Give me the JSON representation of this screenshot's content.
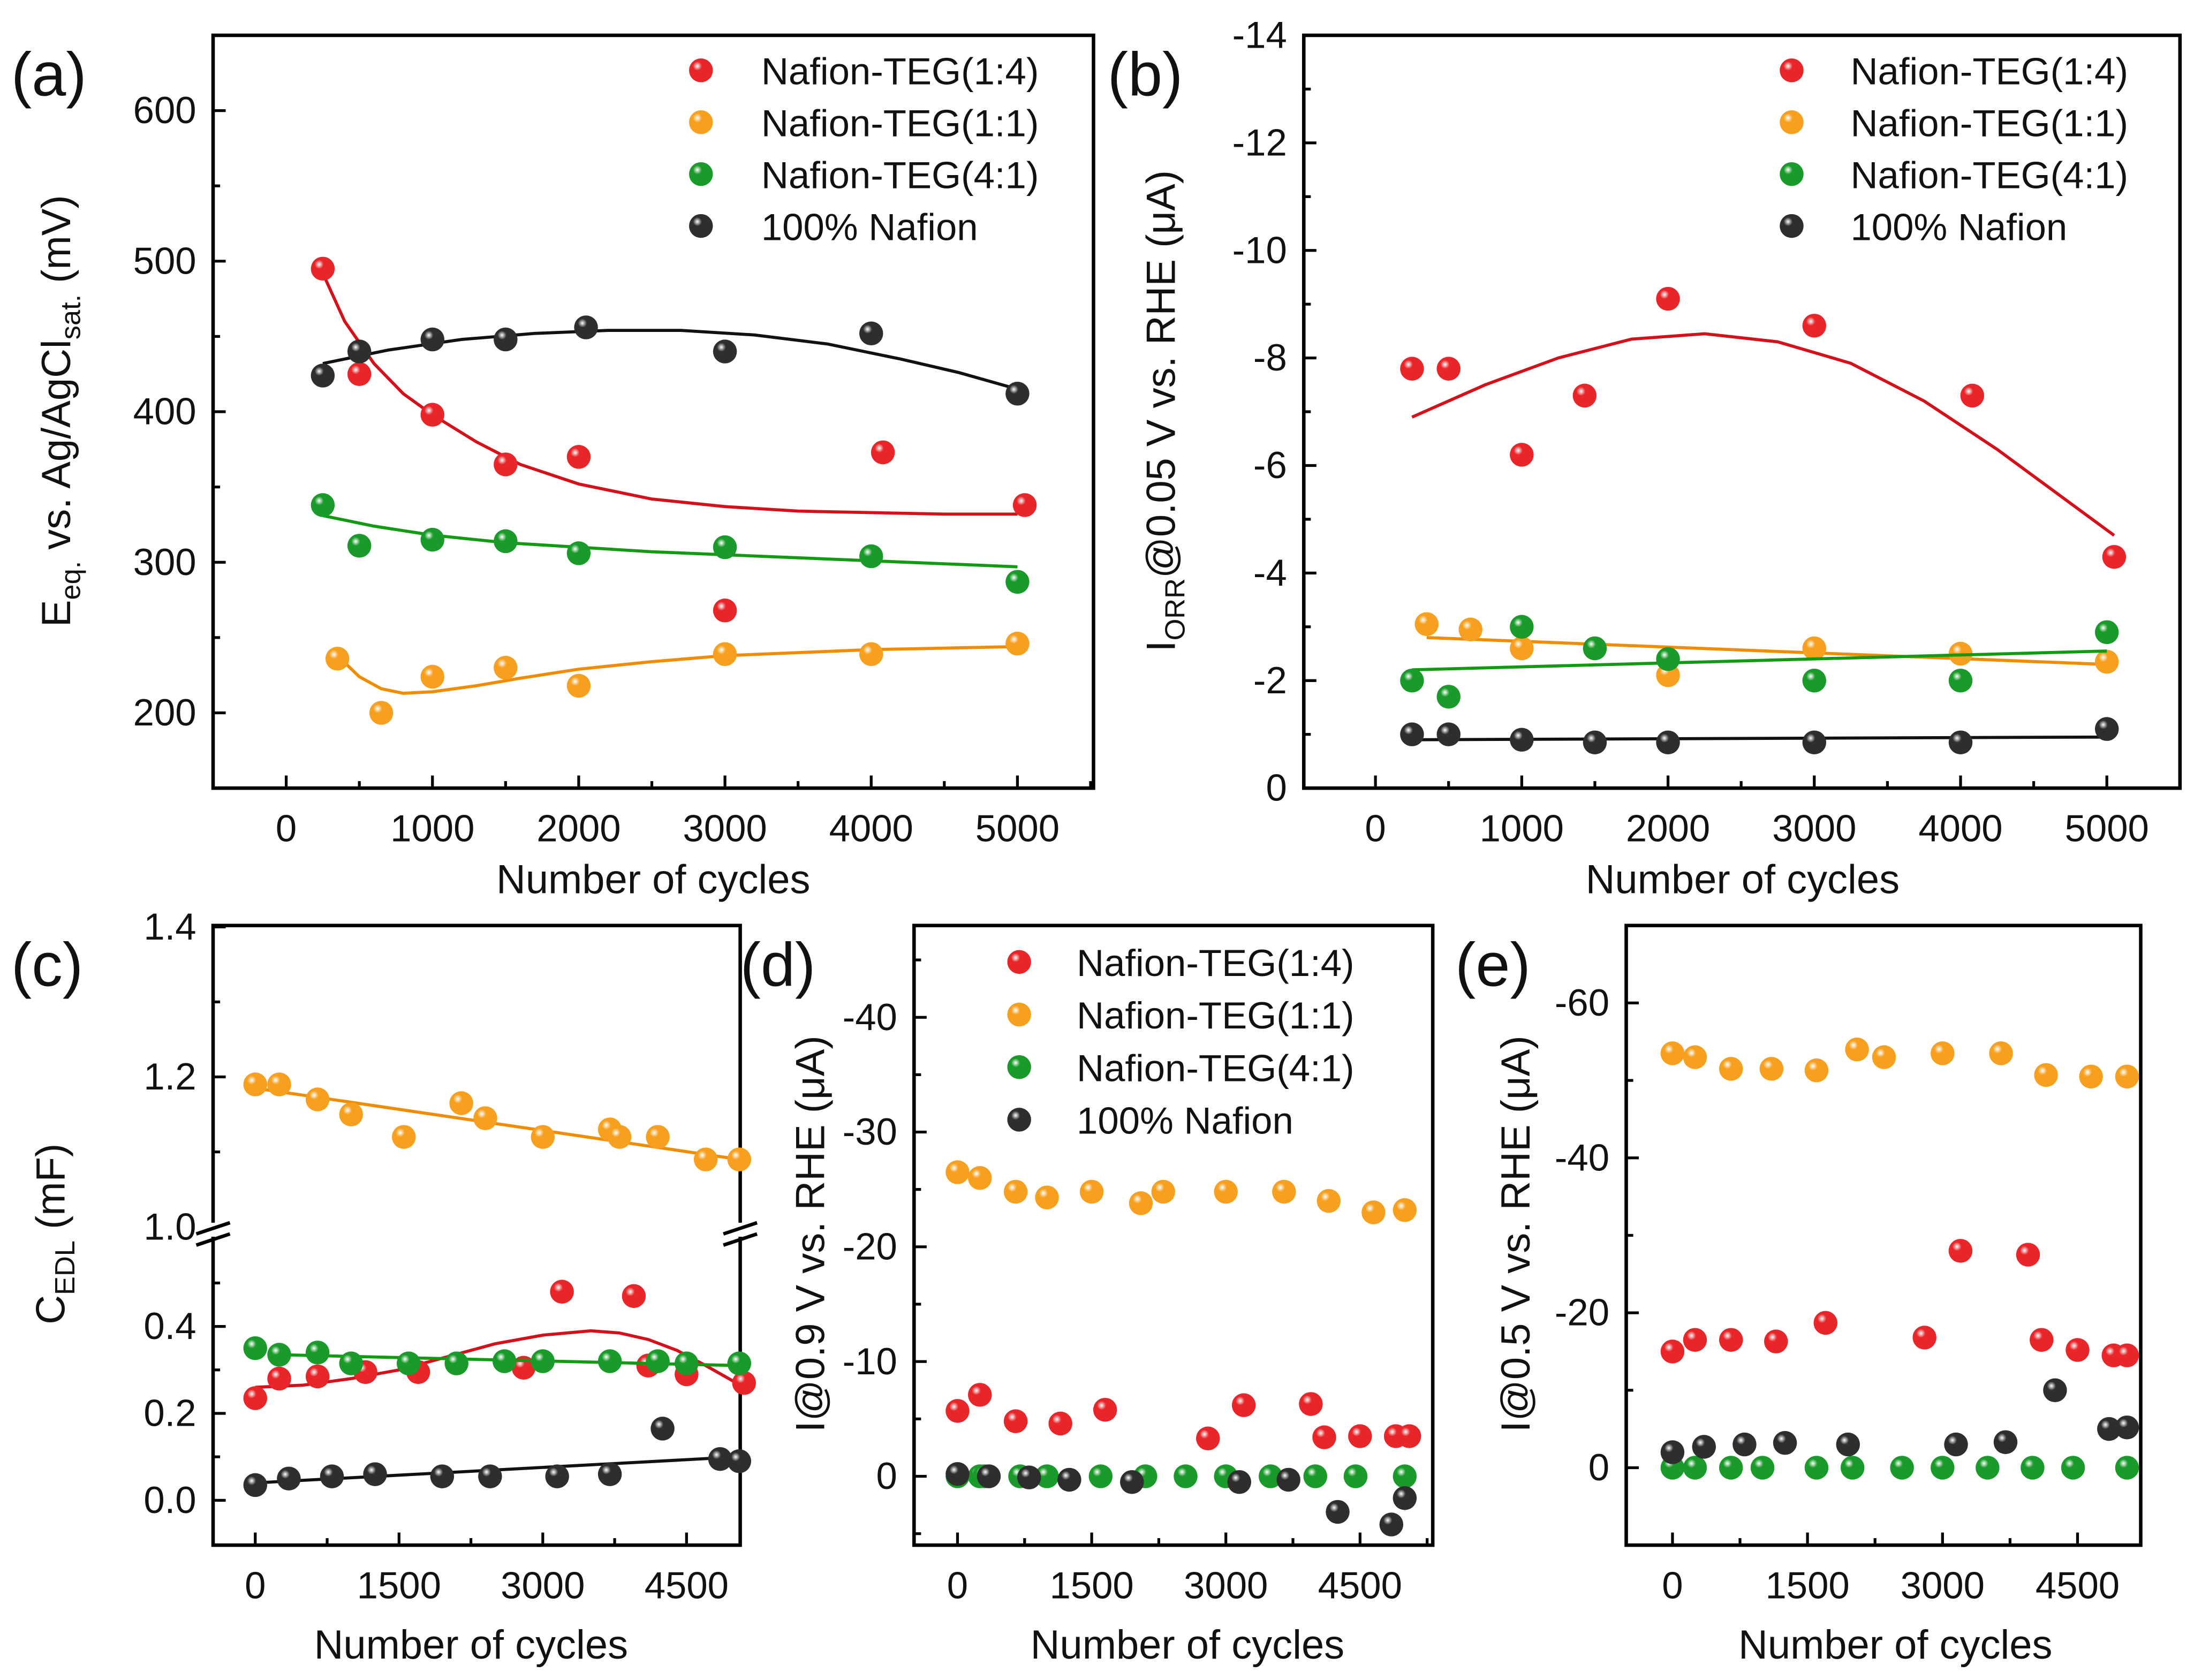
{
  "colors": {
    "red": "#e8262a",
    "orange": "#f7a020",
    "green": "#1a9a2a",
    "black": "#2e2e2e",
    "fit_red": "#d4101a",
    "fit_orange": "#f08c00",
    "fit_green": "#129a12",
    "fit_black": "#111111"
  },
  "chart_data": [
    {
      "panel": "(a)",
      "type": "scatter",
      "xlabel": "Number of cycles",
      "ylabel": [
        {
          "t": "E"
        },
        {
          "t": "eq.",
          "sub": true
        },
        {
          "t": " vs. Ag/AgCl"
        },
        {
          "t": "sat.",
          "sub": true
        },
        {
          "t": " (mV)"
        }
      ],
      "xlim": [
        -500,
        5520
      ],
      "ylim": [
        150,
        650
      ],
      "xticks": [
        "0",
        "1000",
        "2000",
        "3000",
        "4000",
        "5000"
      ],
      "xtick_values": [
        0,
        1000,
        2000,
        3000,
        4000,
        5000
      ],
      "yticks": [
        "200",
        "300",
        "400",
        "500",
        "600"
      ],
      "ytick_values": [
        200,
        300,
        400,
        500,
        600
      ],
      "legend": "top-right",
      "series": [
        {
          "name": "Nafion-TEG(1:4)",
          "color": "red",
          "x": [
            250,
            500,
            1000,
            1500,
            2000,
            3000,
            4080,
            5050
          ],
          "y": [
            495,
            425,
            398,
            365,
            370,
            268,
            373,
            338
          ],
          "fit_x": [
            250,
            400,
            600,
            800,
            1000,
            1300,
            1600,
            2000,
            2500,
            3000,
            3500,
            4000,
            4500,
            5000
          ],
          "fit_y": [
            492,
            460,
            432,
            412,
            398,
            380,
            365,
            352,
            342,
            337,
            334,
            333,
            332,
            332
          ]
        },
        {
          "name": "Nafion-TEG(1:1)",
          "color": "orange",
          "x": [
            350,
            650,
            1000,
            1500,
            2000,
            3000,
            4000,
            5000
          ],
          "y": [
            236,
            200,
            224,
            230,
            218,
            239,
            239,
            246
          ],
          "fit_x": [
            350,
            500,
            650,
            800,
            1000,
            1300,
            1600,
            2000,
            2500,
            3000,
            3500,
            4000,
            4500,
            5000
          ],
          "fit_y": [
            238,
            224,
            216,
            213,
            214,
            218,
            223,
            229,
            234,
            238,
            240,
            242,
            243,
            244
          ]
        },
        {
          "name": "Nafion-TEG(4:1)",
          "color": "green",
          "x": [
            250,
            500,
            1000,
            1500,
            2000,
            3000,
            4000,
            5000
          ],
          "y": [
            338,
            311,
            315,
            314,
            306,
            310,
            304,
            287
          ],
          "fit_x": [
            250,
            600,
            1000,
            1500,
            2000,
            2500,
            3000,
            3500,
            4000,
            4500,
            5000
          ],
          "fit_y": [
            331,
            324,
            318,
            313,
            310,
            307,
            305,
            303,
            301,
            299,
            297
          ]
        },
        {
          "name": "100% Nafion",
          "color": "black",
          "x": [
            250,
            500,
            1000,
            1500,
            2050,
            3000,
            4000,
            5000
          ],
          "y": [
            424,
            440,
            448,
            448,
            456,
            440,
            452,
            412
          ],
          "fit_x": [
            250,
            700,
            1200,
            1700,
            2200,
            2700,
            3200,
            3700,
            4200,
            4600,
            5000
          ],
          "fit_y": [
            432,
            441,
            448,
            452,
            454,
            454,
            451,
            445,
            435,
            426,
            415
          ]
        }
      ]
    },
    {
      "panel": "(b)",
      "type": "scatter",
      "xlabel": "Number of cycles",
      "ylabel": [
        {
          "t": "I"
        },
        {
          "t": "ORR",
          "sub": true
        },
        {
          "t": "@0.05 V vs. RHE (μA)"
        }
      ],
      "xlim": [
        -490,
        5500
      ],
      "ylim": [
        0,
        -14
      ],
      "xticks": [
        "0",
        "1000",
        "2000",
        "3000",
        "4000",
        "5000"
      ],
      "xtick_values": [
        0,
        1000,
        2000,
        3000,
        4000,
        5000
      ],
      "yticks": [
        "0",
        "-2",
        "-4",
        "-6",
        "-8",
        "-10",
        "-12",
        "-14"
      ],
      "ytick_values": [
        0,
        -2,
        -4,
        -6,
        -8,
        -10,
        -12,
        -14
      ],
      "legend": "top-right",
      "series": [
        {
          "name": "Nafion-TEG(1:4)",
          "color": "red",
          "x": [
            250,
            500,
            1000,
            1430,
            2000,
            3000,
            4080,
            5050
          ],
          "y": [
            -7.8,
            -7.8,
            -6.2,
            -7.3,
            -9.1,
            -8.6,
            -7.3,
            -4.3
          ],
          "fit_x": [
            250,
            750,
            1250,
            1750,
            2250,
            2750,
            3250,
            3750,
            4250,
            4750,
            5050
          ],
          "fit_y": [
            -6.9,
            -7.5,
            -8.0,
            -8.35,
            -8.45,
            -8.3,
            -7.9,
            -7.2,
            -6.3,
            -5.3,
            -4.7
          ]
        },
        {
          "name": "Nafion-TEG(1:1)",
          "color": "orange",
          "x": [
            350,
            650,
            1000,
            1500,
            2000,
            3000,
            4000,
            5000
          ],
          "y": [
            -3.05,
            -2.95,
            -2.6,
            -2.6,
            -2.1,
            -2.6,
            -2.5,
            -2.35
          ],
          "fit_x": [
            350,
            5000
          ],
          "fit_y": [
            -2.8,
            -2.3
          ]
        },
        {
          "name": "Nafion-TEG(4:1)",
          "color": "green",
          "x": [
            250,
            500,
            1000,
            1500,
            2000,
            3000,
            4000,
            5000
          ],
          "y": [
            -2.0,
            -1.7,
            -3.0,
            -2.6,
            -2.4,
            -2.0,
            -2.0,
            -2.9
          ],
          "fit_x": [
            250,
            5000
          ],
          "fit_y": [
            -2.2,
            -2.55
          ]
        },
        {
          "name": "100% Nafion",
          "color": "black",
          "x": [
            250,
            500,
            1000,
            1500,
            2000,
            3000,
            4000,
            5000
          ],
          "y": [
            -1.0,
            -1.0,
            -0.9,
            -0.85,
            -0.85,
            -0.85,
            -0.85,
            -1.1
          ],
          "fit_x": [
            250,
            5000
          ],
          "fit_y": [
            -0.9,
            -0.95
          ]
        }
      ]
    },
    {
      "panel": "(c)",
      "type": "scatter",
      "xlabel": "Number of cycles",
      "ylabel": [
        {
          "t": "C"
        },
        {
          "t": "EDL",
          "sub": true
        },
        {
          "t": " (mF)"
        }
      ],
      "xlim": [
        -440,
        5060
      ],
      "ylim": [
        -0.1,
        1.4
      ],
      "axis_break": [
        0.6,
        1.0
      ],
      "xticks": [
        "0",
        "1500",
        "3000",
        "4500"
      ],
      "xtick_values": [
        0,
        1500,
        3000,
        4500
      ],
      "yticks": [
        "0.0",
        "0.2",
        "0.4",
        "1.0",
        "1.2",
        "1.4"
      ],
      "ytick_values": [
        0,
        0.2,
        0.4,
        1.0,
        1.2,
        1.4
      ],
      "series": [
        {
          "color": "orange",
          "x": [
            0,
            250,
            650,
            1000,
            1550,
            2150,
            2400,
            3000,
            3700,
            3800,
            4200,
            4700,
            5050
          ],
          "y": [
            1.19,
            1.19,
            1.17,
            1.15,
            1.12,
            1.165,
            1.145,
            1.12,
            1.13,
            1.12,
            1.12,
            1.09,
            1.09
          ],
          "fit_x": [
            0,
            5050
          ],
          "fit_y": [
            1.185,
            1.09
          ]
        },
        {
          "color": "red",
          "x": [
            0,
            250,
            650,
            1150,
            1700,
            2800,
            3200,
            3950,
            4100,
            4500,
            5100
          ],
          "y": [
            0.235,
            0.28,
            0.285,
            0.295,
            0.295,
            0.305,
            0.48,
            0.47,
            0.31,
            0.29,
            0.27
          ],
          "fit_x": [
            0,
            500,
            1000,
            1500,
            2000,
            2500,
            3000,
            3500,
            3800,
            4100,
            4400,
            4700,
            5100
          ],
          "fit_y": [
            0.26,
            0.265,
            0.28,
            0.3,
            0.33,
            0.36,
            0.38,
            0.39,
            0.385,
            0.37,
            0.345,
            0.31,
            0.26
          ]
        },
        {
          "color": "green",
          "x": [
            0,
            250,
            650,
            1000,
            1600,
            2100,
            2600,
            3000,
            3700,
            4200,
            4500,
            5050
          ],
          "y": [
            0.35,
            0.335,
            0.34,
            0.315,
            0.315,
            0.315,
            0.32,
            0.32,
            0.32,
            0.32,
            0.315,
            0.315
          ],
          "fit_x": [
            250,
            5050
          ],
          "fit_y": [
            0.335,
            0.31
          ]
        },
        {
          "color": "black",
          "x": [
            0,
            350,
            800,
            1250,
            1950,
            2450,
            3150,
            3700,
            4250,
            4850,
            5050
          ],
          "y": [
            0.035,
            0.05,
            0.055,
            0.06,
            0.055,
            0.055,
            0.055,
            0.06,
            0.165,
            0.095,
            0.09
          ],
          "fit_x": [
            0,
            5050
          ],
          "fit_y": [
            0.04,
            0.1
          ]
        }
      ]
    },
    {
      "panel": "(d)",
      "type": "scatter",
      "xlabel": "Number of cycles",
      "ylabel": [
        {
          "t": "I@0.9 V vs. RHE (μA)"
        }
      ],
      "xlim": [
        -486,
        5313
      ],
      "ylim": [
        6,
        -48
      ],
      "xticks": [
        "0",
        "1500",
        "3000",
        "4500"
      ],
      "xtick_values": [
        0,
        1500,
        3000,
        4500
      ],
      "yticks": [
        "0",
        "-10",
        "-20",
        "-30",
        "-40"
      ],
      "ytick_values": [
        0,
        -10,
        -20,
        -30,
        -40
      ],
      "legend": "top-right",
      "series": [
        {
          "name": "Nafion-TEG(1:4)",
          "color": "red",
          "x": [
            0,
            250,
            650,
            1150,
            1650,
            2800,
            3200,
            3950,
            4100,
            4500,
            4900,
            5050
          ],
          "y": [
            -5.7,
            -7.1,
            -4.8,
            -4.6,
            -5.8,
            -3.3,
            -6.2,
            -6.3,
            -3.4,
            -3.5,
            -3.5,
            -3.5
          ]
        },
        {
          "name": "Nafion-TEG(1:1)",
          "color": "orange",
          "x": [
            0,
            250,
            650,
            1000,
            1500,
            2050,
            2300,
            3000,
            3650,
            4150,
            4650,
            5000
          ],
          "y": [
            -26.5,
            -26,
            -24.8,
            -24.3,
            -24.8,
            -23.8,
            -24.8,
            -24.8,
            -24.8,
            -24,
            -23,
            -23.2
          ]
        },
        {
          "name": "Nafion-TEG(4:1)",
          "color": "green",
          "x": [
            0,
            250,
            300,
            700,
            1000,
            1600,
            2100,
            2550,
            3000,
            3500,
            4000,
            4450,
            5000
          ],
          "y": [
            0,
            0,
            0,
            0,
            0,
            0,
            0,
            0,
            0,
            0,
            0,
            0,
            0
          ]
        },
        {
          "name": "100% Nafion",
          "color": "black",
          "x": [
            0,
            350,
            800,
            1250,
            1950,
            3150,
            3700,
            4250,
            4850,
            5000
          ],
          "y": [
            -0.2,
            0,
            0.1,
            0.3,
            0.5,
            0.5,
            0.3,
            3.1,
            4.2,
            1.9
          ]
        }
      ]
    },
    {
      "panel": "(e)",
      "type": "scatter",
      "xlabel": "Number of cycles",
      "ylabel": [
        {
          "t": "I@0.5 V vs. RHE (μA)"
        }
      ],
      "xlim": [
        -514,
        5202
      ],
      "ylim": [
        10,
        -70
      ],
      "xticks": [
        "0",
        "1500",
        "3000",
        "4500"
      ],
      "xtick_values": [
        0,
        1500,
        3000,
        4500
      ],
      "yticks": [
        "0",
        "-20",
        "-40",
        "-60"
      ],
      "ytick_values": [
        0,
        -20,
        -40,
        -60
      ],
      "series": [
        {
          "color": "orange",
          "x": [
            0,
            250,
            650,
            1100,
            1600,
            2050,
            2350,
            3000,
            3650,
            4150,
            4650,
            5050
          ],
          "y": [
            -53.5,
            -53,
            -51.5,
            -51.5,
            -51.3,
            -54,
            -53,
            -53.5,
            -53.5,
            -50.7,
            -50.5,
            -50.5
          ]
        },
        {
          "color": "red",
          "x": [
            0,
            250,
            650,
            1150,
            1700,
            2800,
            3200,
            3950,
            4100,
            4500,
            4900,
            5050
          ],
          "y": [
            -15,
            -16.5,
            -16.5,
            -16.3,
            -18.7,
            -16.8,
            -28,
            -27.5,
            -16.5,
            -15.2,
            -14.5,
            -14.5
          ]
        },
        {
          "color": "green",
          "x": [
            0,
            250,
            650,
            1000,
            1600,
            2000,
            2550,
            3000,
            3500,
            4000,
            4450,
            5050
          ],
          "y": [
            0,
            0,
            0,
            0,
            0,
            0,
            0,
            0,
            0,
            0,
            0,
            0
          ]
        },
        {
          "color": "black",
          "x": [
            0,
            350,
            800,
            1250,
            1950,
            3150,
            3700,
            4250,
            4850,
            5050
          ],
          "y": [
            -2,
            -2.7,
            -3,
            -3.2,
            -3,
            -3,
            -3.3,
            -10,
            -5,
            -5.2
          ]
        }
      ]
    }
  ]
}
